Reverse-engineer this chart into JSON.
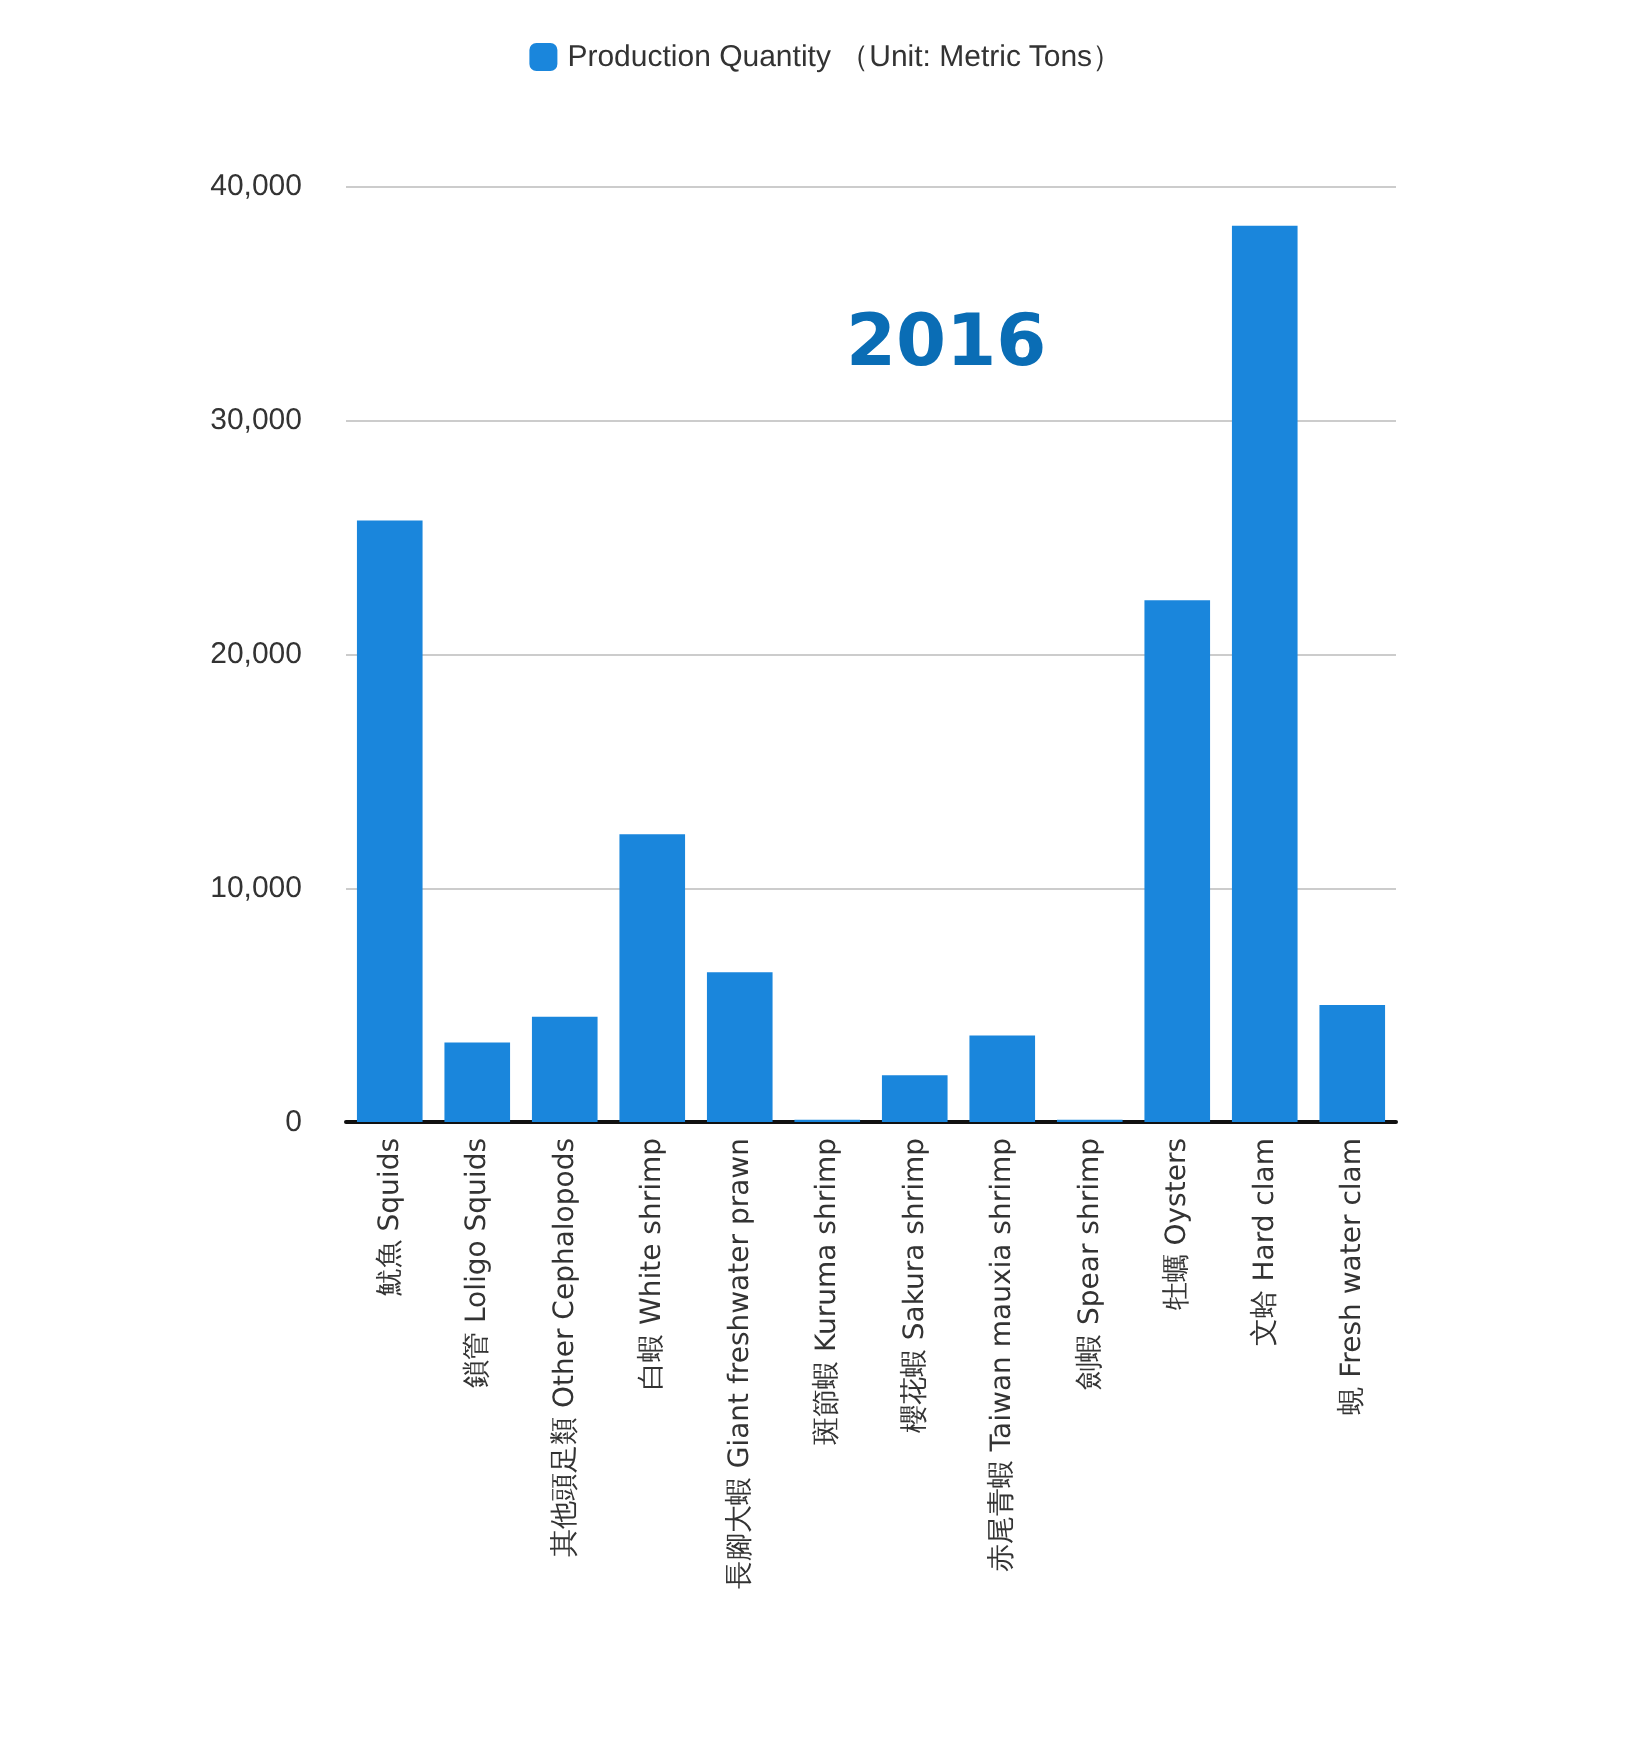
{
  "chart_data": {
    "type": "bar",
    "title": "2016",
    "categories": [
      "魷魚 Squids",
      "鎖管 Loligo Squids",
      "其他頭足類 Other Cephalopods",
      "白蝦 White shrimp",
      "長腳大蝦 Giant freshwater prawn",
      "斑節蝦 Kuruma shrimp",
      "櫻花蝦 Sakura shrimp",
      "赤尾青蝦 Taiwan mauxia shrimp",
      "劍蝦 Spear shrimp",
      "牡蠣 Oysters",
      "文蛤 Hard clam",
      "蜆 Fresh water clam"
    ],
    "series": [
      {
        "name": "Production Quantity （Unit: Metric Tons）",
        "color": "#1a86dc",
        "values": [
          25700,
          3400,
          4500,
          12300,
          6400,
          100,
          2000,
          3700,
          100,
          22300,
          38300,
          5000
        ]
      }
    ],
    "ylim": [
      0,
      40000
    ],
    "yticks": [
      0,
      {
        "value": 10000,
        "label": "10,000"
      },
      {
        "value": 20000,
        "label": "20,000"
      },
      {
        "value": 30000,
        "label": "30,000"
      },
      {
        "value": 40000,
        "label": "40,000"
      }
    ],
    "grid": "y",
    "legend": "top"
  }
}
